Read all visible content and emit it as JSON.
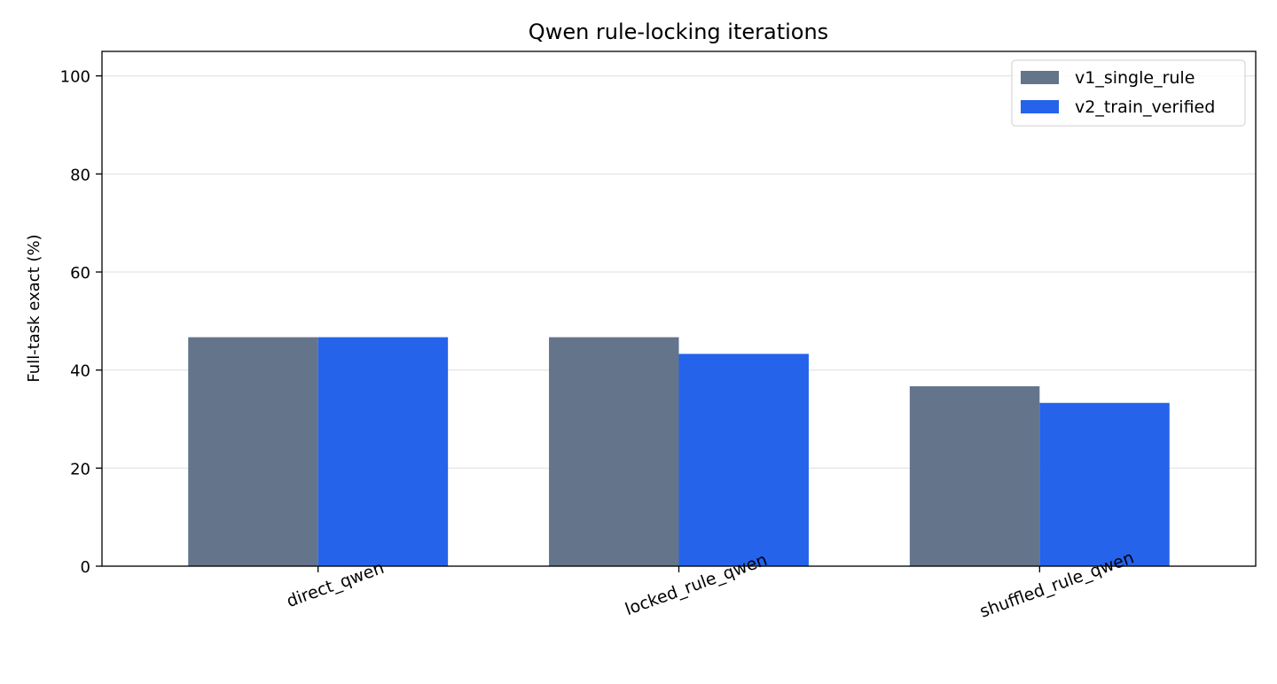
{
  "chart_data": {
    "type": "bar",
    "title": "Qwen rule-locking iterations",
    "xlabel": "",
    "ylabel": "Full-task exact (%)",
    "categories": [
      "direct_qwen",
      "locked_rule_qwen",
      "shuffled_rule_qwen"
    ],
    "series": [
      {
        "name": "v1_single_rule",
        "values": [
          46.7,
          46.7,
          36.7
        ],
        "color": "#64748b"
      },
      {
        "name": "v2_train_verified",
        "values": [
          46.7,
          43.3,
          33.3
        ],
        "color": "#2563eb"
      }
    ],
    "ylim": [
      0,
      105
    ],
    "yticks": [
      0,
      20,
      40,
      60,
      80,
      100
    ],
    "grid": "y",
    "legend_position": "top-right"
  }
}
